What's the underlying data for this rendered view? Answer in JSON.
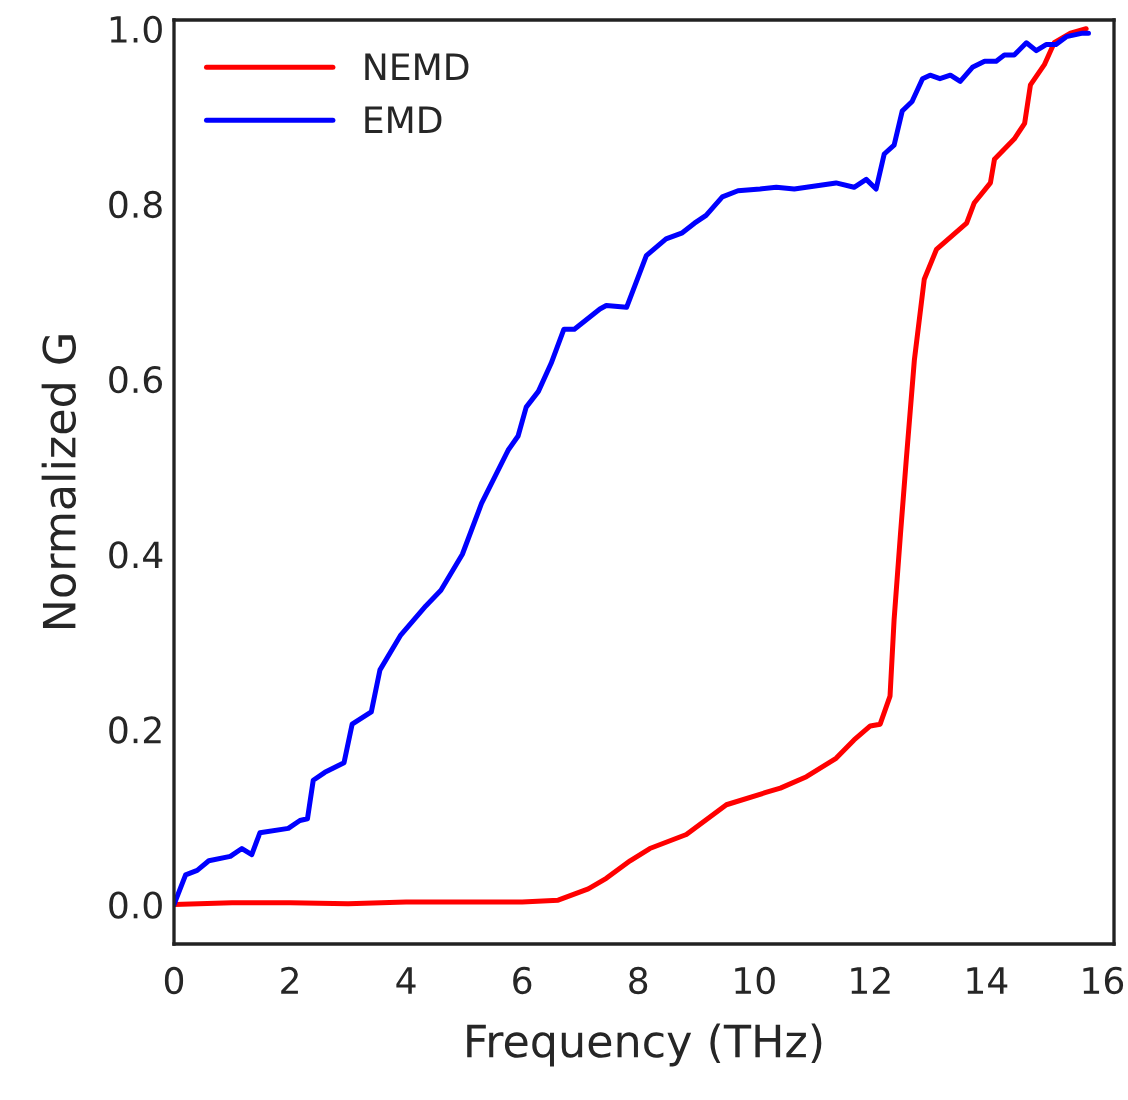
{
  "chart_data": {
    "type": "line",
    "xlabel": "Frequency (THz)",
    "ylabel": "Normalized G",
    "xlim": [
      0,
      16.2
    ],
    "ylim": [
      -0.045,
      1.01
    ],
    "xticks": [
      0,
      2,
      4,
      6,
      8,
      10,
      12,
      14,
      16
    ],
    "yticks": [
      {
        "value": 0,
        "label": "0.0"
      },
      0.2,
      0.4,
      0.6,
      0.8,
      {
        "value": 1,
        "label": "1.0"
      }
    ],
    "grid": false,
    "legend": "top left",
    "marker": "none",
    "line_style": "solid",
    "series": [
      {
        "name": "NEMD",
        "color": "#ff0000",
        "x": [
          0,
          1,
          2,
          3,
          4,
          5,
          6,
          6.62,
          7.14,
          7.45,
          7.86,
          8.2,
          8.83,
          9.52,
          10.2,
          10.45,
          10.9,
          11.41,
          11.72,
          12.0,
          12.17,
          12.34,
          12.41,
          12.52,
          12.62,
          12.76,
          12.93,
          13.14,
          13.66,
          13.79,
          14.07,
          14.14,
          14.48,
          14.66,
          14.76,
          15.0,
          15.17,
          15.45,
          15.72
        ],
        "values": [
          0,
          0.002,
          0.002,
          0.001,
          0.003,
          0.003,
          0.003,
          0.005,
          0.018,
          0.03,
          0.05,
          0.064,
          0.08,
          0.114,
          0.128,
          0.133,
          0.146,
          0.167,
          0.188,
          0.204,
          0.206,
          0.238,
          0.325,
          0.423,
          0.508,
          0.622,
          0.714,
          0.748,
          0.778,
          0.801,
          0.824,
          0.851,
          0.874,
          0.892,
          0.936,
          0.959,
          0.984,
          0.995,
          1.0
        ]
      },
      {
        "name": "EMD",
        "color": "#0000ff",
        "x": [
          0,
          0.2,
          0.4,
          0.6,
          0.97,
          1.17,
          1.34,
          1.48,
          1.97,
          2.17,
          2.3,
          2.4,
          2.6,
          2.93,
          3.07,
          3.4,
          3.55,
          3.9,
          4.34,
          4.6,
          4.97,
          5.3,
          5.76,
          5.93,
          6.07,
          6.28,
          6.5,
          6.72,
          6.9,
          7.34,
          7.45,
          7.8,
          8.14,
          8.48,
          8.76,
          8.97,
          9.17,
          9.45,
          9.72,
          10.1,
          10.38,
          10.69,
          10.9,
          11.41,
          11.72,
          11.93,
          12.1,
          12.24,
          12.41,
          12.55,
          12.72,
          12.9,
          13.03,
          13.2,
          13.38,
          13.55,
          13.76,
          13.97,
          14.17,
          14.31,
          14.48,
          14.69,
          14.86,
          15.03,
          15.2,
          15.38,
          15.66,
          15.76
        ],
        "values": [
          0,
          0.034,
          0.039,
          0.05,
          0.055,
          0.064,
          0.057,
          0.082,
          0.087,
          0.096,
          0.098,
          0.142,
          0.151,
          0.162,
          0.206,
          0.22,
          0.268,
          0.307,
          0.341,
          0.359,
          0.4,
          0.458,
          0.519,
          0.535,
          0.568,
          0.586,
          0.618,
          0.657,
          0.657,
          0.68,
          0.684,
          0.682,
          0.741,
          0.76,
          0.767,
          0.778,
          0.787,
          0.808,
          0.815,
          0.817,
          0.819,
          0.817,
          0.819,
          0.824,
          0.819,
          0.828,
          0.817,
          0.857,
          0.867,
          0.906,
          0.917,
          0.943,
          0.947,
          0.943,
          0.947,
          0.94,
          0.956,
          0.963,
          0.963,
          0.97,
          0.97,
          0.984,
          0.975,
          0.982,
          0.982,
          0.991,
          0.995,
          0.995
        ]
      }
    ]
  }
}
